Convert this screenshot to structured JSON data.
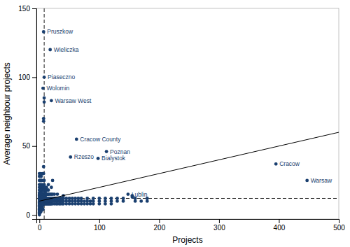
{
  "chart_data": {
    "type": "scatter",
    "xlabel": "Projects",
    "ylabel": "Average neighbour projects",
    "xlim": [
      -5,
      500
    ],
    "ylim": [
      -3,
      150
    ],
    "xticks": [
      0,
      100,
      200,
      300,
      400,
      500
    ],
    "yticks": [
      0,
      50,
      100,
      150
    ],
    "series": [
      {
        "type": "scatter",
        "color": "#1a3f6f",
        "x": [
          0,
          0,
          0,
          0,
          0,
          0,
          0,
          0,
          0,
          0,
          0,
          0,
          0,
          0,
          0,
          0,
          0,
          0,
          0,
          0,
          0,
          0,
          0,
          1,
          1,
          1,
          1,
          1,
          1,
          1,
          1,
          1,
          1,
          1,
          1,
          1,
          1,
          1,
          1,
          1,
          1,
          1,
          2,
          2,
          2,
          2,
          2,
          2,
          2,
          2,
          2,
          2,
          2,
          2,
          2,
          2,
          2,
          2,
          2,
          2,
          3,
          3,
          3,
          3,
          3,
          3,
          3,
          3,
          3,
          3,
          3,
          3,
          3,
          4,
          4,
          4,
          4,
          4,
          4,
          4,
          4,
          4,
          4,
          5,
          5,
          5,
          5,
          5,
          5,
          5,
          5,
          5,
          5,
          6,
          6,
          6,
          6,
          6,
          6,
          6,
          7,
          7,
          7,
          7,
          7,
          7,
          7,
          7,
          7,
          7,
          8,
          8,
          8,
          8,
          8,
          8,
          8,
          8,
          8,
          9,
          9,
          9,
          9,
          9,
          9,
          9,
          10,
          10,
          10,
          10,
          10,
          10,
          10,
          11,
          11,
          11,
          11,
          11,
          12,
          12,
          12,
          12,
          12,
          12,
          13,
          13,
          13,
          13,
          14,
          14,
          14,
          14,
          14,
          15,
          15,
          15,
          15,
          15,
          15,
          16,
          16,
          16,
          16,
          17,
          17,
          17,
          18,
          18,
          18,
          18,
          19,
          19,
          19,
          20,
          20,
          20,
          20,
          20,
          22,
          22,
          22,
          22,
          22,
          25,
          25,
          25,
          25,
          28,
          28,
          28,
          30,
          30,
          30,
          30,
          33,
          33,
          33,
          35,
          35,
          35,
          38,
          38,
          38,
          40,
          40,
          40,
          40,
          45,
          45,
          45,
          50,
          50,
          50,
          55,
          55,
          55,
          60,
          60,
          60,
          65,
          65,
          65,
          70,
          70,
          70,
          75,
          75,
          80,
          80,
          80,
          85,
          85,
          90,
          90,
          90,
          100,
          100,
          100,
          110,
          110,
          110,
          120,
          120,
          120,
          130,
          130,
          140,
          140,
          155,
          155,
          160,
          160,
          170,
          180,
          180
        ],
        "values": [
          2,
          3,
          4,
          5,
          6,
          7,
          8,
          9,
          10,
          11,
          12,
          13,
          14,
          15,
          16,
          18,
          20,
          1,
          0,
          22,
          25,
          28,
          30,
          2,
          3,
          4,
          5,
          6,
          7,
          8,
          9,
          10,
          11,
          12,
          13,
          14,
          15,
          16,
          18,
          20,
          22,
          25,
          2,
          3,
          4,
          5,
          6,
          7,
          8,
          9,
          10,
          11,
          12,
          13,
          14,
          15,
          18,
          20,
          25,
          30,
          3,
          5,
          7,
          8,
          10,
          12,
          14,
          16,
          18,
          20,
          22,
          25,
          28,
          4,
          6,
          8,
          10,
          12,
          14,
          16,
          18,
          20,
          25,
          5,
          7,
          9,
          11,
          13,
          15,
          18,
          20,
          22,
          30,
          4,
          7,
          10,
          12,
          15,
          18,
          20,
          10,
          12,
          15,
          18,
          20,
          25,
          30,
          35,
          68,
          70,
          8,
          10,
          12,
          15,
          18,
          22,
          25,
          82,
          85,
          8,
          10,
          12,
          14,
          16,
          18,
          20,
          8,
          10,
          12,
          14,
          16,
          18,
          20,
          8,
          10,
          12,
          15,
          18,
          8,
          10,
          12,
          15,
          18,
          20,
          8,
          10,
          12,
          15,
          8,
          10,
          12,
          15,
          18,
          8,
          10,
          12,
          15,
          18,
          22,
          8,
          10,
          12,
          15,
          8,
          10,
          12,
          8,
          10,
          12,
          15,
          8,
          10,
          12,
          8,
          10,
          12,
          15,
          20,
          8,
          10,
          12,
          15,
          25,
          8,
          10,
          12,
          15,
          8,
          10,
          12,
          8,
          10,
          12,
          15,
          8,
          10,
          12,
          8,
          10,
          12,
          8,
          10,
          12,
          8,
          10,
          12,
          14,
          8,
          10,
          12,
          8,
          10,
          12,
          8,
          10,
          12,
          8,
          10,
          12,
          8,
          10,
          12,
          8,
          10,
          12,
          8,
          10,
          8,
          10,
          12,
          8,
          10,
          8,
          10,
          12,
          8,
          10,
          12,
          8,
          10,
          12,
          8,
          10,
          12,
          10,
          12,
          10,
          12,
          13,
          14,
          10,
          12,
          10,
          10,
          12
        ]
      },
      {
        "type": "scatter",
        "color": "#1a3f6f",
        "x": [
          7,
          18,
          8,
          6,
          20,
          62,
          112,
          52,
          98,
          148,
          395,
          447
        ],
        "values": [
          133,
          120,
          100,
          92,
          83,
          55,
          46,
          42,
          41,
          15,
          37,
          25
        ],
        "labels": [
          "Pruszkow",
          "Wieliczka",
          "Piaseczno",
          "Wolomin",
          "Warsaw West",
          "Cracow County",
          "Poznan",
          "Rzeszo",
          "Bialystok",
          "Lublin",
          "Cracow",
          "Warsaw"
        ]
      },
      {
        "type": "line",
        "color": "#000000",
        "line_style": "solid",
        "x": [
          0,
          500
        ],
        "values": [
          10,
          60
        ]
      }
    ],
    "reference_lines": [
      {
        "axis": "x",
        "value": 8,
        "color": "#000000",
        "line_style": "dashed"
      },
      {
        "axis": "y",
        "value": 12,
        "color": "#000000",
        "line_style": "dashed"
      }
    ]
  }
}
